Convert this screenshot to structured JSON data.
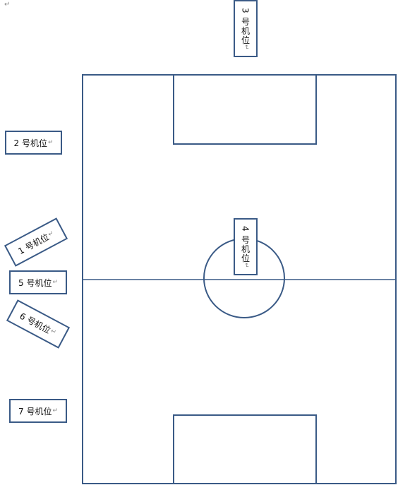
{
  "paragraph_mark": "↵",
  "cameras": [
    {
      "id": "cam1",
      "label": "1 号机位",
      "mark": "↵"
    },
    {
      "id": "cam2",
      "label": "2 号机位",
      "mark": "↵"
    },
    {
      "id": "cam3",
      "label": "3 号机位",
      "mark": "↵"
    },
    {
      "id": "cam4",
      "label": "4 号机位",
      "mark": "↵"
    },
    {
      "id": "cam5",
      "label": "5 号机位",
      "mark": "↵"
    },
    {
      "id": "cam6",
      "label": "6 号机位",
      "mark": "↵"
    },
    {
      "id": "cam7",
      "label": "7 号机位",
      "mark": "↵"
    }
  ],
  "colors": {
    "line": "#3a5a86",
    "background": "#ffffff",
    "text": "#111111"
  }
}
